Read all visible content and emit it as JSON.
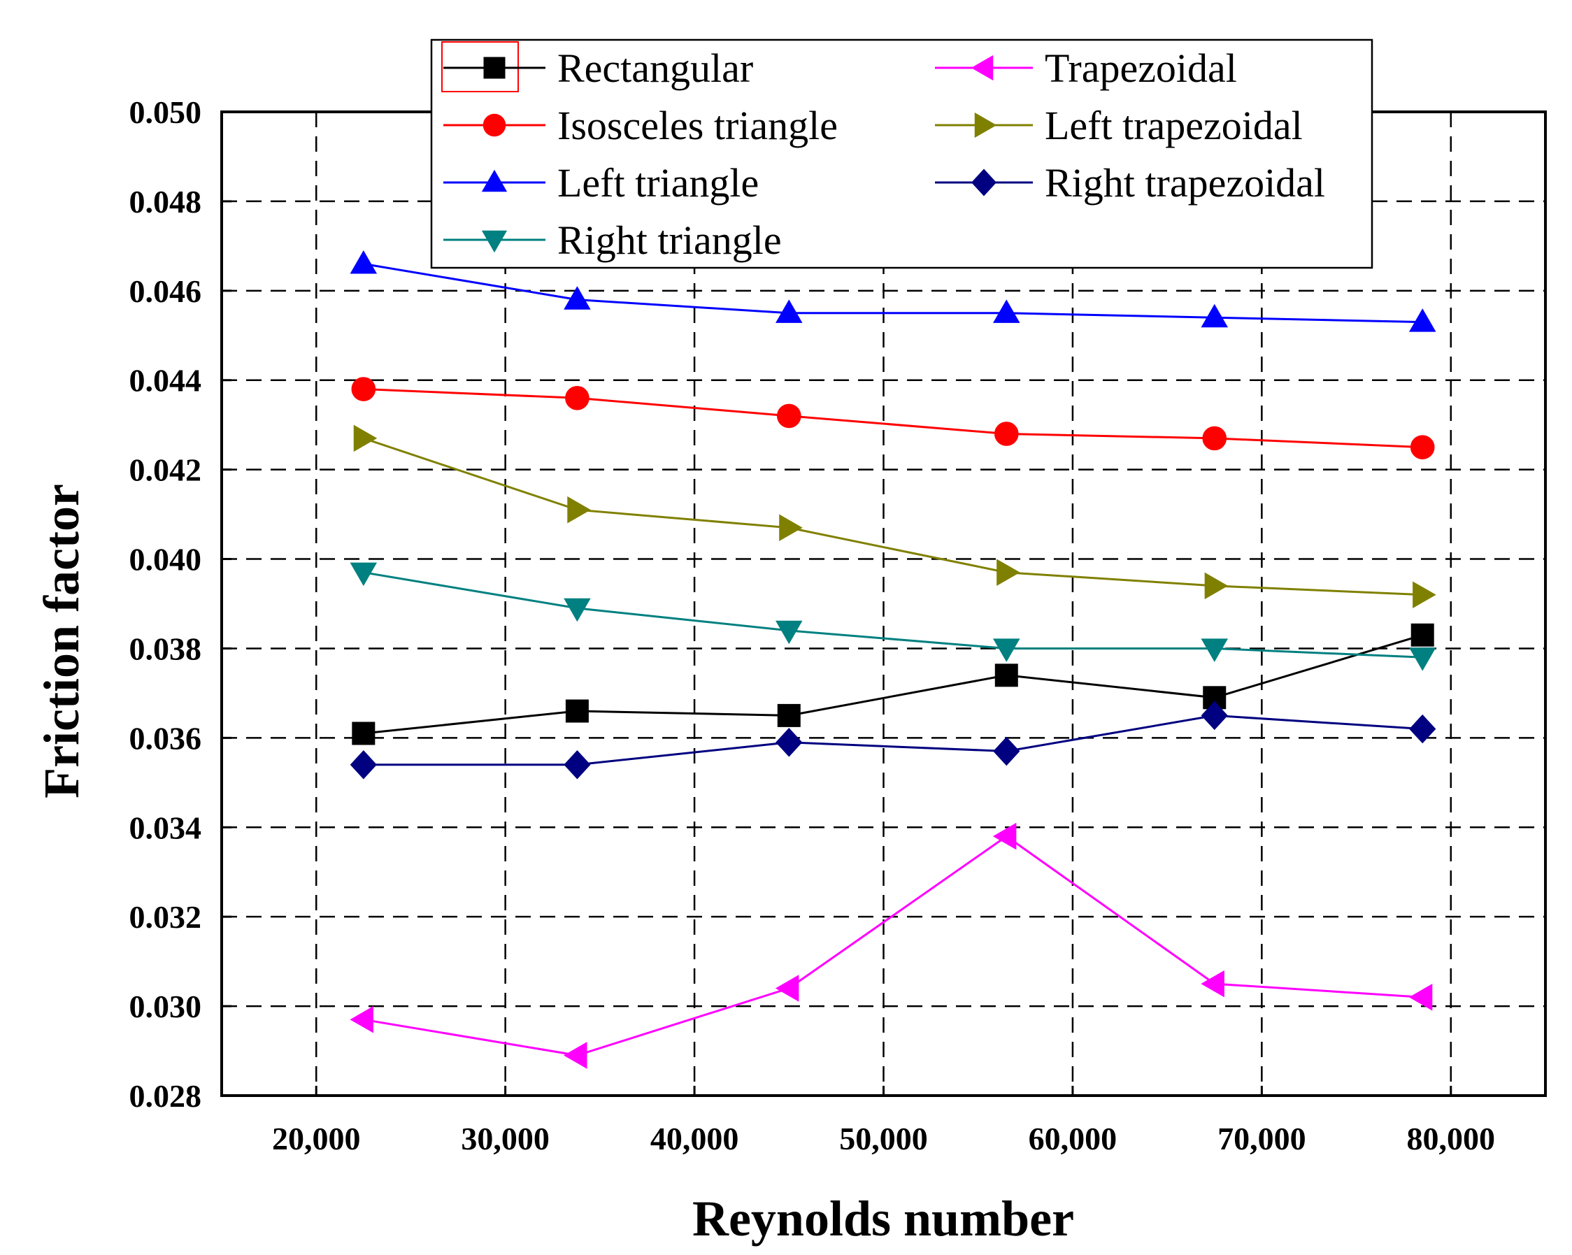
{
  "chart_data": {
    "type": "line",
    "title": "",
    "xlabel": "Reynolds number",
    "ylabel": "Friction factor",
    "xlim": [
      15000,
      85000
    ],
    "ylim": [
      0.028,
      0.05
    ],
    "x_ticks": [
      20000,
      30000,
      40000,
      50000,
      60000,
      70000,
      80000
    ],
    "x_tick_labels": [
      "20,000",
      "30,000",
      "40,000",
      "50,000",
      "60,000",
      "70,000",
      "80,000"
    ],
    "y_ticks": [
      0.028,
      0.03,
      0.032,
      0.034,
      0.036,
      0.038,
      0.04,
      0.042,
      0.044,
      0.046,
      0.048,
      0.05
    ],
    "y_tick_labels": [
      "0.028",
      "0.030",
      "0.032",
      "0.034",
      "0.036",
      "0.038",
      "0.040",
      "0.042",
      "0.044",
      "0.046",
      "0.048",
      "0.050"
    ],
    "grid": true,
    "legend_position": "top",
    "x": [
      22500,
      33800,
      45000,
      56500,
      67500,
      78500
    ],
    "series": [
      {
        "name": "Rectangular",
        "marker": "square",
        "color": "#000000",
        "values": [
          0.0361,
          0.0366,
          0.0365,
          0.0374,
          0.0369,
          0.0383
        ]
      },
      {
        "name": "Isosceles triangle",
        "marker": "circle",
        "color": "#ff0000",
        "values": [
          0.0438,
          0.0436,
          0.0432,
          0.0428,
          0.0427,
          0.0425
        ]
      },
      {
        "name": "Left triangle",
        "marker": "triangle-up",
        "color": "#0000ff",
        "values": [
          0.0466,
          0.0458,
          0.0455,
          0.0455,
          0.0454,
          0.0453
        ]
      },
      {
        "name": "Right triangle",
        "marker": "triangle-down",
        "color": "#008080",
        "values": [
          0.0397,
          0.0389,
          0.0384,
          0.038,
          0.038,
          0.0378
        ]
      },
      {
        "name": "Trapezoidal",
        "marker": "triangle-left",
        "color": "#ff00ff",
        "values": [
          0.0297,
          0.0289,
          0.0304,
          0.0338,
          0.0305,
          0.0302
        ]
      },
      {
        "name": "Left trapezoidal",
        "marker": "triangle-right",
        "color": "#808000",
        "values": [
          0.0427,
          0.0411,
          0.0407,
          0.0397,
          0.0394,
          0.0392
        ]
      },
      {
        "name": "Right trapezoidal",
        "marker": "diamond",
        "color": "#000080",
        "values": [
          0.0354,
          0.0354,
          0.0359,
          0.0357,
          0.0365,
          0.0362
        ]
      }
    ]
  }
}
